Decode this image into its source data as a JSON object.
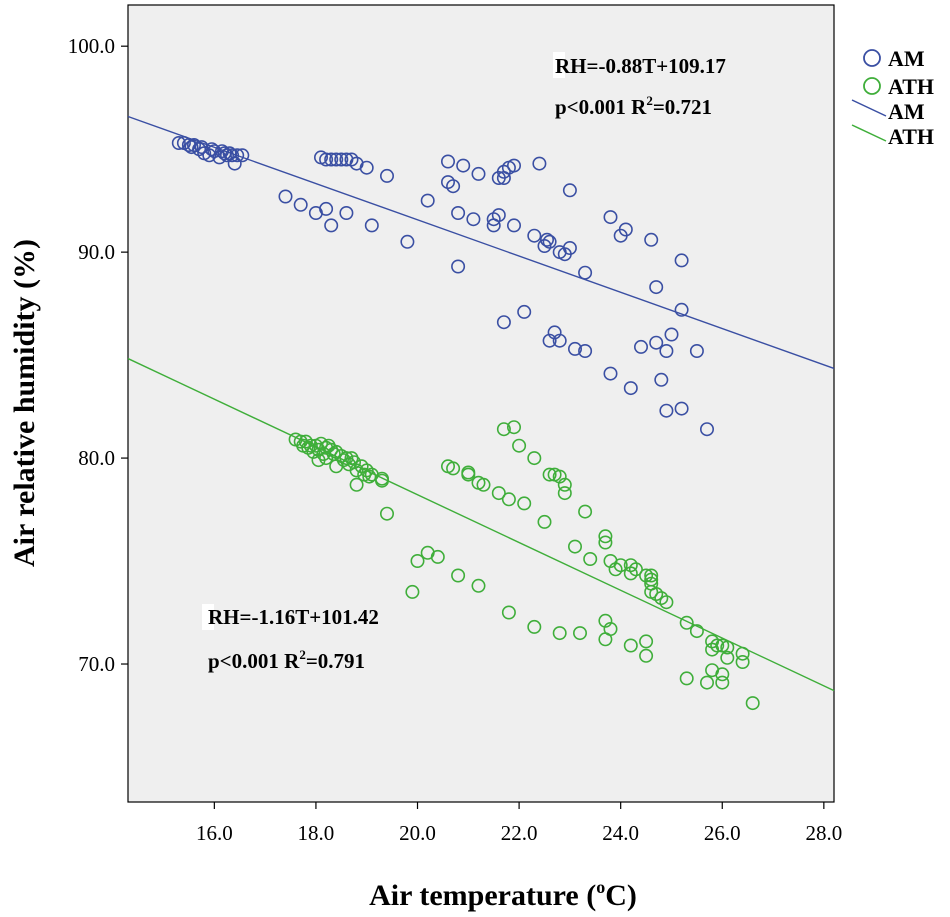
{
  "chart_data": {
    "type": "scatter",
    "xlabel": "Air temperature (",
    "xlabel_sup": "o",
    "xlabel_unit": "C)",
    "ylabel": "Air relative humidity (%)",
    "xlim": [
      14.3,
      28.2
    ],
    "ylim": [
      63.3,
      102.0
    ],
    "x_ticks": [
      "16.0",
      "18.0",
      "20.0",
      "22.0",
      "24.0",
      "26.0",
      "28.0"
    ],
    "y_ticks": [
      "70.0",
      "80.0",
      "90.0",
      "100.0"
    ],
    "legend": [
      {
        "label": "AM",
        "marker": "circle",
        "color": "#3a4fa3"
      },
      {
        "label": "ATH",
        "marker": "circle",
        "color": "#3fae3a"
      },
      {
        "label": "AM",
        "marker": "line",
        "color": "#3a4fa3"
      },
      {
        "label": "ATH",
        "marker": "line",
        "color": "#3fae3a"
      }
    ],
    "annotations": {
      "am_eq": "RH=-0.88T+109.17",
      "am_stats_pre": "p<0.001 R",
      "am_stats_sup": "2",
      "am_stats_post": "=0.721",
      "ath_eq": "RH=-1.16T+101.42",
      "ath_stats_pre": "p<0.001 R",
      "ath_stats_sup": "2",
      "ath_stats_post": "=0.791"
    },
    "series": [
      {
        "name": "AM",
        "color": "#3a4fa3",
        "fit": {
          "slope": -0.88,
          "intercept": 109.17
        },
        "points": [
          [
            15.3,
            95.3
          ],
          [
            15.4,
            95.3
          ],
          [
            15.5,
            95.2
          ],
          [
            15.55,
            95.1
          ],
          [
            15.6,
            95.2
          ],
          [
            15.7,
            95.0
          ],
          [
            15.75,
            95.1
          ],
          [
            15.8,
            94.8
          ],
          [
            15.9,
            94.7
          ],
          [
            15.95,
            95.0
          ],
          [
            16.0,
            94.9
          ],
          [
            16.1,
            94.6
          ],
          [
            16.15,
            94.9
          ],
          [
            16.2,
            94.8
          ],
          [
            16.25,
            94.7
          ],
          [
            16.3,
            94.8
          ],
          [
            16.35,
            94.7
          ],
          [
            16.4,
            94.3
          ],
          [
            16.45,
            94.7
          ],
          [
            16.55,
            94.7
          ],
          [
            17.4,
            92.7
          ],
          [
            17.7,
            92.3
          ],
          [
            18.1,
            94.6
          ],
          [
            18.2,
            94.5
          ],
          [
            18.3,
            94.5
          ],
          [
            18.4,
            94.5
          ],
          [
            18.5,
            94.5
          ],
          [
            18.6,
            94.5
          ],
          [
            18.7,
            94.5
          ],
          [
            18.8,
            94.3
          ],
          [
            19.0,
            94.1
          ],
          [
            19.4,
            93.7
          ],
          [
            18.0,
            91.9
          ],
          [
            18.2,
            92.1
          ],
          [
            18.3,
            91.3
          ],
          [
            18.6,
            91.9
          ],
          [
            19.1,
            91.3
          ],
          [
            19.8,
            90.5
          ],
          [
            20.2,
            92.5
          ],
          [
            20.6,
            94.4
          ],
          [
            20.7,
            93.2
          ],
          [
            20.9,
            94.2
          ],
          [
            20.6,
            93.4
          ],
          [
            21.2,
            93.8
          ],
          [
            21.6,
            93.6
          ],
          [
            21.7,
            93.6
          ],
          [
            21.8,
            94.1
          ],
          [
            21.9,
            94.2
          ],
          [
            21.7,
            93.9
          ],
          [
            22.4,
            94.3
          ],
          [
            23.0,
            93.0
          ],
          [
            20.8,
            91.9
          ],
          [
            21.1,
            91.6
          ],
          [
            21.5,
            91.6
          ],
          [
            21.6,
            91.8
          ],
          [
            21.9,
            91.3
          ],
          [
            21.5,
            91.3
          ],
          [
            22.3,
            90.8
          ],
          [
            22.5,
            90.3
          ],
          [
            22.6,
            90.5
          ],
          [
            22.8,
            90.0
          ],
          [
            23.0,
            90.2
          ],
          [
            22.9,
            89.9
          ],
          [
            22.55,
            90.6
          ],
          [
            20.8,
            89.3
          ],
          [
            23.3,
            89.0
          ],
          [
            23.8,
            91.7
          ],
          [
            24.0,
            90.8
          ],
          [
            24.1,
            91.1
          ],
          [
            24.6,
            90.6
          ],
          [
            25.2,
            89.6
          ],
          [
            24.7,
            88.3
          ],
          [
            21.7,
            86.6
          ],
          [
            22.1,
            87.1
          ],
          [
            22.6,
            85.7
          ],
          [
            22.7,
            86.1
          ],
          [
            22.8,
            85.7
          ],
          [
            23.1,
            85.3
          ],
          [
            23.3,
            85.2
          ],
          [
            24.4,
            85.4
          ],
          [
            24.7,
            85.6
          ],
          [
            24.9,
            85.2
          ],
          [
            25.0,
            86.0
          ],
          [
            25.2,
            87.2
          ],
          [
            25.5,
            85.2
          ],
          [
            23.8,
            84.1
          ],
          [
            24.2,
            83.4
          ],
          [
            24.8,
            83.8
          ],
          [
            24.9,
            82.3
          ],
          [
            25.2,
            82.4
          ],
          [
            25.7,
            81.4
          ]
        ]
      },
      {
        "name": "ATH",
        "color": "#3fae3a",
        "fit": {
          "slope": -1.16,
          "intercept": 101.42
        },
        "points": [
          [
            17.6,
            80.9
          ],
          [
            17.7,
            80.8
          ],
          [
            17.75,
            80.6
          ],
          [
            17.8,
            80.8
          ],
          [
            17.85,
            80.5
          ],
          [
            17.9,
            80.6
          ],
          [
            17.95,
            80.3
          ],
          [
            18.0,
            80.6
          ],
          [
            18.05,
            80.4
          ],
          [
            18.1,
            80.7
          ],
          [
            18.15,
            80.2
          ],
          [
            18.2,
            80.5
          ],
          [
            18.25,
            80.6
          ],
          [
            18.3,
            80.4
          ],
          [
            18.35,
            80.2
          ],
          [
            18.4,
            80.3
          ],
          [
            18.05,
            79.9
          ],
          [
            18.2,
            80.0
          ],
          [
            18.5,
            80.1
          ],
          [
            18.55,
            79.9
          ],
          [
            18.6,
            80.0
          ],
          [
            18.65,
            79.7
          ],
          [
            18.7,
            80.0
          ],
          [
            18.4,
            79.6
          ],
          [
            18.75,
            79.8
          ],
          [
            18.8,
            79.4
          ],
          [
            18.9,
            79.6
          ],
          [
            18.95,
            79.2
          ],
          [
            19.0,
            79.4
          ],
          [
            19.05,
            79.1
          ],
          [
            19.1,
            79.2
          ],
          [
            19.3,
            79.0
          ],
          [
            19.3,
            78.9
          ],
          [
            18.8,
            78.7
          ],
          [
            19.4,
            77.3
          ],
          [
            20.6,
            79.6
          ],
          [
            20.7,
            79.5
          ],
          [
            21.0,
            79.3
          ],
          [
            21.0,
            79.2
          ],
          [
            21.2,
            78.8
          ],
          [
            21.3,
            78.7
          ],
          [
            21.6,
            78.3
          ],
          [
            21.8,
            78.0
          ],
          [
            22.1,
            77.8
          ],
          [
            22.5,
            76.9
          ],
          [
            22.7,
            79.2
          ],
          [
            22.8,
            79.1
          ],
          [
            22.9,
            78.7
          ],
          [
            22.9,
            78.3
          ],
          [
            22.6,
            79.2
          ],
          [
            21.7,
            81.4
          ],
          [
            21.9,
            81.5
          ],
          [
            22.0,
            80.6
          ],
          [
            22.3,
            80.0
          ],
          [
            23.3,
            77.4
          ],
          [
            23.1,
            75.7
          ],
          [
            23.4,
            75.1
          ],
          [
            23.7,
            75.9
          ],
          [
            23.7,
            76.2
          ],
          [
            20.0,
            75.0
          ],
          [
            20.2,
            75.4
          ],
          [
            20.4,
            75.2
          ],
          [
            19.9,
            73.5
          ],
          [
            20.8,
            74.3
          ],
          [
            21.2,
            73.8
          ],
          [
            21.8,
            72.5
          ],
          [
            22.3,
            71.8
          ],
          [
            22.8,
            71.5
          ],
          [
            23.2,
            71.5
          ],
          [
            23.8,
            75.0
          ],
          [
            23.9,
            74.6
          ],
          [
            24.0,
            74.8
          ],
          [
            24.2,
            74.8
          ],
          [
            24.3,
            74.6
          ],
          [
            24.2,
            74.4
          ],
          [
            24.5,
            74.3
          ],
          [
            24.6,
            74.3
          ],
          [
            24.6,
            73.9
          ],
          [
            24.6,
            74.1
          ],
          [
            24.7,
            73.4
          ],
          [
            24.8,
            73.2
          ],
          [
            24.9,
            73.0
          ],
          [
            24.6,
            73.5
          ],
          [
            23.7,
            72.1
          ],
          [
            23.7,
            71.2
          ],
          [
            23.8,
            71.7
          ],
          [
            24.2,
            70.9
          ],
          [
            24.5,
            71.1
          ],
          [
            24.5,
            70.4
          ],
          [
            25.3,
            72.0
          ],
          [
            25.5,
            71.6
          ],
          [
            25.8,
            71.1
          ],
          [
            25.8,
            70.7
          ],
          [
            25.9,
            70.9
          ],
          [
            26.0,
            70.9
          ],
          [
            26.1,
            70.8
          ],
          [
            26.4,
            70.5
          ],
          [
            26.4,
            70.1
          ],
          [
            25.3,
            69.3
          ],
          [
            25.7,
            69.1
          ],
          [
            25.8,
            69.7
          ],
          [
            26.0,
            69.5
          ],
          [
            26.0,
            69.1
          ],
          [
            26.1,
            70.3
          ],
          [
            26.6,
            68.1
          ]
        ]
      }
    ]
  }
}
